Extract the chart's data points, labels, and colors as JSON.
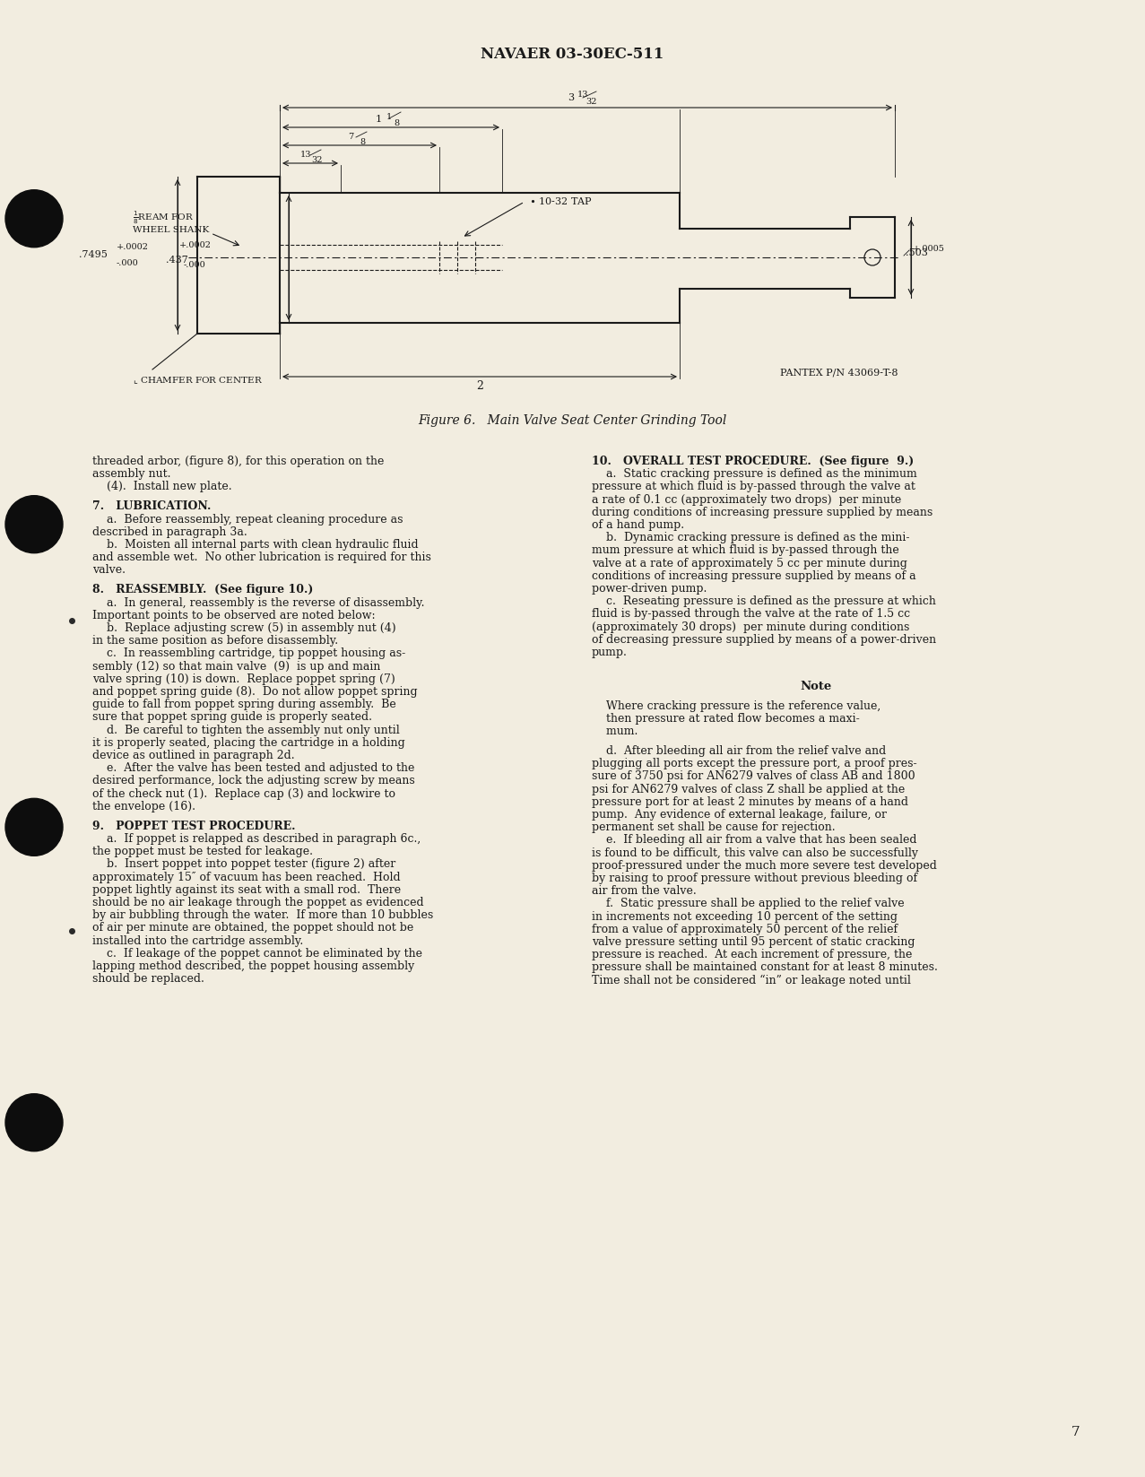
{
  "background_color": "#f2ede0",
  "page_number": "7",
  "header": "NAVAER 03-30EC-511",
  "figure_caption": "Figure 6.   Main Valve Seat Center Grinding Tool",
  "pantex_label": "PANTEX P/N 43069-T-8",
  "chamfer_label": "CHAMFER FOR CENTER",
  "text_color": "#1a1a1a",
  "left_col": [
    [
      "threaded arbor, (figure 8), for this operation on the",
      false
    ],
    [
      "assembly nut.",
      false
    ],
    [
      "    (4).  Install new plate.",
      false
    ],
    [
      "",
      false
    ],
    [
      "7.   LUBRICATION.",
      true
    ],
    [
      "    a.  Before reassembly, repeat cleaning procedure as",
      false
    ],
    [
      "described in paragraph 3a.",
      false
    ],
    [
      "    b.  Moisten all internal parts with clean hydraulic fluid",
      false
    ],
    [
      "and assemble wet.  No other lubrication is required for this",
      false
    ],
    [
      "valve.",
      false
    ],
    [
      "",
      false
    ],
    [
      "8.   REASSEMBLY.  (See figure 10.)",
      true
    ],
    [
      "    a.  In general, reassembly is the reverse of disassembly.",
      false
    ],
    [
      "Important points to be observed are noted below:",
      false
    ],
    [
      "    b.  Replace adjusting screw (5) in assembly nut (4)",
      false
    ],
    [
      "in the same position as before disassembly.",
      false
    ],
    [
      "    c.  In reassembling cartridge, tip poppet housing as-",
      false
    ],
    [
      "sembly (12) so that main valve  (9)  is up and main",
      false
    ],
    [
      "valve spring (10) is down.  Replace poppet spring (7)",
      false
    ],
    [
      "and poppet spring guide (8).  Do not allow poppet spring",
      false
    ],
    [
      "guide to fall from poppet spring during assembly.  Be",
      false
    ],
    [
      "sure that poppet spring guide is properly seated.",
      false
    ],
    [
      "    d.  Be careful to tighten the assembly nut only until",
      false
    ],
    [
      "it is properly seated, placing the cartridge in a holding",
      false
    ],
    [
      "device as outlined in paragraph 2d.",
      false
    ],
    [
      "    e.  After the valve has been tested and adjusted to the",
      false
    ],
    [
      "desired performance, lock the adjusting screw by means",
      false
    ],
    [
      "of the check nut (1).  Replace cap (3) and lockwire to",
      false
    ],
    [
      "the envelope (16).",
      false
    ],
    [
      "",
      false
    ],
    [
      "9.   POPPET TEST PROCEDURE.",
      true
    ],
    [
      "    a.  If poppet is relapped as described in paragraph 6c.,",
      false
    ],
    [
      "the poppet must be tested for leakage.",
      false
    ],
    [
      "    b.  Insert poppet into poppet tester (figure 2) after",
      false
    ],
    [
      "approximately 15″ of vacuum has been reached.  Hold",
      false
    ],
    [
      "poppet lightly against its seat with a small rod.  There",
      false
    ],
    [
      "should be no air leakage through the poppet as evidenced",
      false
    ],
    [
      "by air bubbling through the water.  If more than 10 bubbles",
      false
    ],
    [
      "of air per minute are obtained, the poppet should not be",
      false
    ],
    [
      "installed into the cartridge assembly.",
      false
    ],
    [
      "    c.  If leakage of the poppet cannot be eliminated by the",
      false
    ],
    [
      "lapping method described, the poppet housing assembly",
      false
    ],
    [
      "should be replaced.",
      false
    ]
  ],
  "right_col": [
    [
      "10.   OVERALL TEST PROCEDURE.  (See figure  9.)",
      true
    ],
    [
      "    a.  Static cracking pressure is defined as the minimum",
      false
    ],
    [
      "pressure at which fluid is by-passed through the valve at",
      false
    ],
    [
      "a rate of 0.1 cc (approximately two drops)  per minute",
      false
    ],
    [
      "during conditions of increasing pressure supplied by means",
      false
    ],
    [
      "of a hand pump.",
      false
    ],
    [
      "    b.  Dynamic cracking pressure is defined as the mini-",
      false
    ],
    [
      "mum pressure at which fluid is by-passed through the",
      false
    ],
    [
      "valve at a rate of approximately 5 cc per minute during",
      false
    ],
    [
      "conditions of increasing pressure supplied by means of a",
      false
    ],
    [
      "power-driven pump.",
      false
    ],
    [
      "    c.  Reseating pressure is defined as the pressure at which",
      false
    ],
    [
      "fluid is by-passed through the valve at the rate of 1.5 cc",
      false
    ],
    [
      "(approximately 30 drops)  per minute during conditions",
      false
    ],
    [
      "of decreasing pressure supplied by means of a power-driven",
      false
    ],
    [
      "pump.",
      false
    ],
    [
      "",
      false
    ],
    [
      "",
      false
    ],
    [
      "",
      false
    ],
    [
      "Note",
      "note_header"
    ],
    [
      "",
      false
    ],
    [
      "    Where cracking pressure is the reference value,",
      false
    ],
    [
      "    then pressure at rated flow becomes a maxi-",
      false
    ],
    [
      "    mum.",
      false
    ],
    [
      "",
      false
    ],
    [
      "    d.  After bleeding all air from the relief valve and",
      false
    ],
    [
      "plugging all ports except the pressure port, a proof pres-",
      false
    ],
    [
      "sure of 3750 psi for AN6279 valves of class AB and 1800",
      false
    ],
    [
      "psi for AN6279 valves of class Z shall be applied at the",
      false
    ],
    [
      "pressure port for at least 2 minutes by means of a hand",
      false
    ],
    [
      "pump.  Any evidence of external leakage, failure, or",
      false
    ],
    [
      "permanent set shall be cause for rejection.",
      false
    ],
    [
      "    e.  If bleeding all air from a valve that has been sealed",
      false
    ],
    [
      "is found to be difficult, this valve can also be successfully",
      false
    ],
    [
      "proof-pressured under the much more severe test developed",
      false
    ],
    [
      "by raising to proof pressure without previous bleeding of",
      false
    ],
    [
      "air from the valve.",
      false
    ],
    [
      "    f.  Static pressure shall be applied to the relief valve",
      false
    ],
    [
      "in increments not exceeding 10 percent of the setting",
      false
    ],
    [
      "from a value of approximately 50 percent of the relief",
      false
    ],
    [
      "valve pressure setting until 95 percent of static cracking",
      false
    ],
    [
      "pressure is reached.  At each increment of pressure, the",
      false
    ],
    [
      "pressure shall be maintained constant for at least 8 minutes.",
      false
    ],
    [
      "Time shall not be considered “in” or leakage noted until",
      false
    ]
  ]
}
